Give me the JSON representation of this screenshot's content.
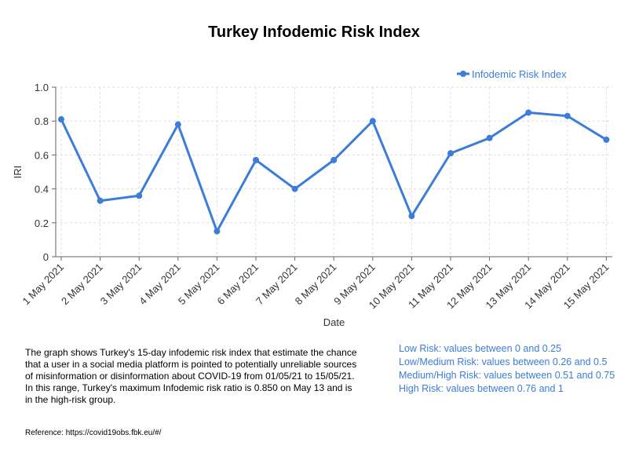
{
  "chart_data": {
    "type": "line",
    "title": "Turkey Infodemic Risk Index",
    "xlabel": "Date",
    "ylabel": "IRI",
    "ylim": [
      0,
      1.0
    ],
    "yticks": [
      0,
      0.2,
      0.4,
      0.6,
      0.8,
      1.0
    ],
    "ytick_labels": [
      "0",
      "0.2",
      "0.4",
      "0.6",
      "0.8",
      "1.0"
    ],
    "grid": true,
    "legend_position": "top-right",
    "categories": [
      "1 May 2021",
      "2 May 2021",
      "3 May 2021",
      "4 May 2021",
      "5 May 2021",
      "6 May 2021",
      "7 May 2021",
      "8 May 2021",
      "9 May 2021",
      "10 May 2021",
      "11 May 2021",
      "12 May 2021",
      "13 May 2021",
      "14 May 2021",
      "15 May 2021"
    ],
    "series": [
      {
        "name": "Infodemic Risk Index",
        "color": "#3b7dd8",
        "values": [
          0.81,
          0.33,
          0.36,
          0.78,
          0.15,
          0.57,
          0.4,
          0.57,
          0.8,
          0.24,
          0.61,
          0.7,
          0.85,
          0.83,
          0.69
        ]
      }
    ]
  },
  "description": "The graph shows Turkey's 15-day infodemic risk index that estimate the chance that a user in a social media platform is pointed to potentially unreliable sources of misinformation or disinformation about COVID-19 from 01/05/21 to 15/05/21. In this range, Turkey's maximum Infodemic risk ratio is 0.850 on May 13 and is in the high-risk group.",
  "risk_levels": [
    "Low Risk: values between 0 and 0.25",
    "Low/Medium Risk: values between 0.26 and 0.5",
    "Medium/High Risk: values between 0.51 and 0.75",
    "High Risk: values between 0.76 and 1"
  ],
  "reference": "Reference: https://covid19obs.fbk.eu/#/"
}
